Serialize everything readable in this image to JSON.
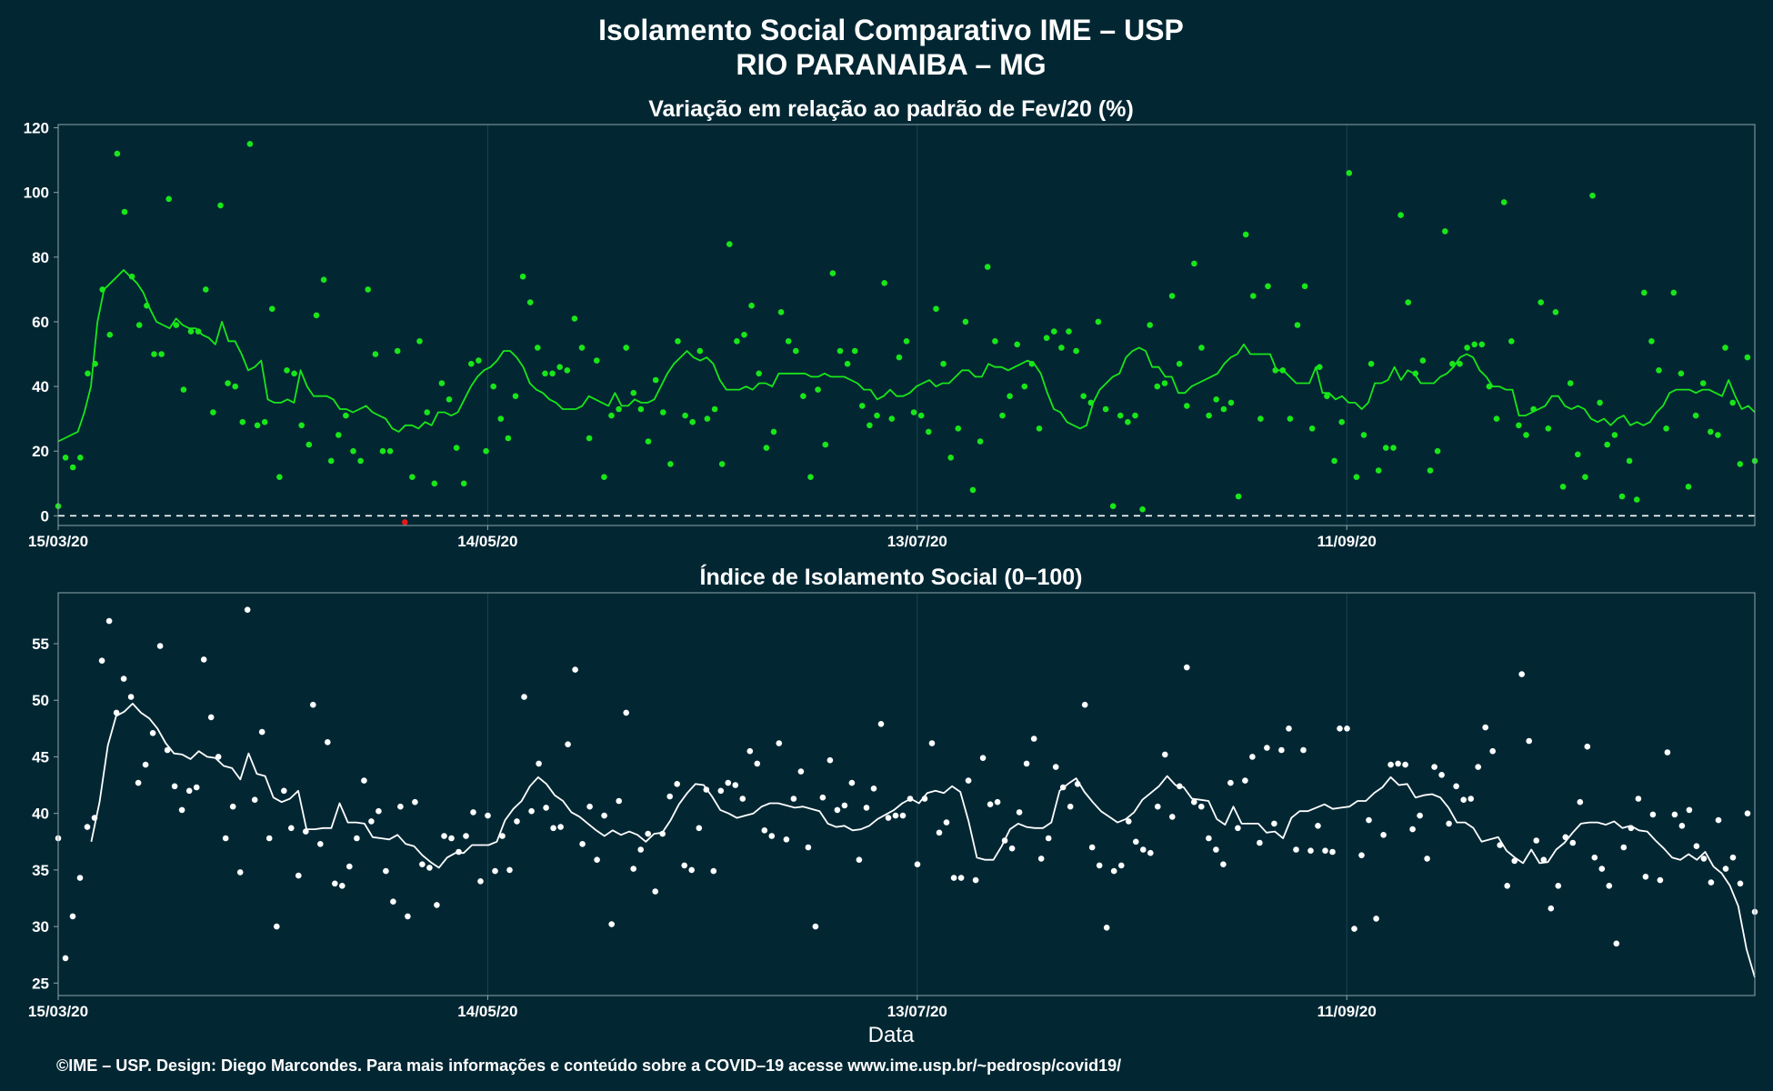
{
  "header": {
    "title": "Isolamento Social Comparativo IME – USP",
    "subtitle": "RIO PARANAIBA – MG"
  },
  "footer": {
    "credit": "©IME – USP. Design: Diego Marcondes. Para mais informações e conteúdo sobre a COVID–19 acesse www.ime.usp.br/~pedrosp/covid19/"
  },
  "colors": {
    "background": "#022733",
    "variation_points": "#19e619",
    "variation_line": "#19e619",
    "negative_point": "#e61919",
    "index_points": "#ffffff",
    "index_line": "#ffffff",
    "zero_line": "#ffffff"
  },
  "chart_data": [
    {
      "type": "scatter",
      "title": "Variação em relação ao padrão de Fev/20 (%)",
      "xlabel": "",
      "ylabel": "",
      "x_start": "2020-03-15",
      "x_end": "2020-11-07",
      "x_ticks": [
        "15/03/20",
        "14/05/20",
        "13/07/20",
        "11/09/20"
      ],
      "y_ticks": [
        0,
        20,
        40,
        60,
        80,
        100,
        120
      ],
      "ylim": [
        -3,
        121
      ],
      "reference_line": 0,
      "grid": true,
      "series": [
        {
          "kind": "points",
          "values": [
            3,
            18,
            15,
            18,
            44,
            47,
            70,
            56,
            112,
            94,
            74,
            59,
            65,
            50,
            50,
            98,
            59,
            39,
            57,
            57,
            70,
            32,
            96,
            41,
            40,
            29,
            115,
            28,
            29,
            64,
            12,
            45,
            44,
            28,
            22,
            62,
            73,
            17,
            25,
            31,
            20,
            17,
            70,
            50,
            20,
            20,
            51,
            -2,
            12,
            54,
            32,
            10,
            41,
            36,
            21,
            10,
            47,
            48,
            20,
            40,
            30,
            24,
            37,
            74,
            66,
            52,
            44,
            44,
            46,
            45,
            61,
            52,
            24,
            48,
            12,
            31,
            33,
            52,
            38,
            33,
            23,
            42,
            32,
            16,
            54,
            31,
            29,
            51,
            30,
            33,
            16,
            84,
            54,
            56,
            65,
            44,
            21,
            26,
            63,
            54,
            51,
            37,
            12,
            39,
            22,
            75,
            51,
            47,
            51,
            34,
            28,
            31,
            72,
            30,
            49,
            54,
            32,
            31,
            26,
            64,
            47,
            18,
            27,
            60,
            8,
            23,
            77,
            54,
            31,
            37,
            53,
            40,
            47,
            27,
            55,
            57,
            52,
            57,
            51,
            37,
            35,
            60,
            33,
            3,
            31,
            29,
            31,
            2,
            59,
            40,
            41,
            68,
            47,
            34,
            78,
            52,
            31,
            36,
            33,
            35,
            6,
            87,
            68,
            30,
            71,
            45,
            45,
            30,
            59,
            71,
            27,
            46,
            37,
            17,
            29,
            106,
            12,
            25,
            47,
            14,
            21,
            21,
            93,
            66,
            44,
            48,
            14,
            20,
            88,
            47,
            47,
            52,
            53,
            53,
            40,
            30,
            97,
            54,
            28,
            25,
            33,
            66,
            27,
            63,
            9,
            41,
            19,
            12,
            99,
            35,
            22,
            25,
            6,
            17,
            5,
            69,
            54,
            45,
            27,
            69,
            44,
            9,
            31,
            41,
            26,
            25,
            52,
            35,
            16,
            49,
            17
          ],
          "negative_values": [
            -2
          ]
        },
        {
          "kind": "moving_average",
          "values": [
            23,
            24,
            25,
            26,
            32,
            40,
            60,
            70,
            72,
            74,
            76,
            74,
            72,
            69,
            64,
            60,
            59,
            58,
            61,
            59,
            58,
            58,
            56,
            55,
            53,
            60,
            54,
            54,
            50,
            45,
            46,
            48,
            36,
            35,
            35,
            36,
            35,
            45,
            40,
            37,
            37,
            37,
            36,
            33,
            33,
            32,
            33,
            34,
            32,
            31,
            30,
            27,
            26,
            28,
            28,
            27,
            29,
            28,
            32,
            32,
            31,
            32,
            36,
            40,
            43,
            45,
            46,
            48,
            51,
            51,
            49,
            46,
            41,
            39,
            38,
            36,
            35,
            33,
            33,
            33,
            34,
            37,
            36,
            35,
            34,
            38,
            34,
            34,
            36,
            35,
            35,
            36,
            40,
            44,
            47,
            49,
            51,
            49,
            48,
            49,
            47,
            42,
            39,
            39,
            39,
            40,
            39,
            41,
            41,
            40,
            44,
            44,
            44,
            44,
            44,
            43,
            43,
            44,
            43,
            43,
            43,
            42,
            41,
            39,
            39,
            36,
            37,
            39,
            37,
            37,
            38,
            40,
            41,
            42,
            40,
            41,
            41,
            43,
            45,
            45,
            43,
            43,
            47,
            46,
            46,
            45,
            46,
            47,
            48,
            47,
            44,
            38,
            33,
            32,
            29,
            28,
            27,
            28,
            35,
            39,
            41,
            43,
            44,
            49,
            51,
            52,
            51,
            46,
            46,
            43,
            43,
            38,
            38,
            40,
            41,
            42,
            43,
            44,
            47,
            49,
            50,
            53,
            50,
            50,
            50,
            50,
            45,
            45,
            43,
            41,
            41,
            41,
            46,
            38,
            38,
            36,
            37,
            35,
            35,
            33,
            35,
            41,
            41,
            42,
            46,
            42,
            45,
            44,
            41,
            41,
            41,
            43,
            44,
            46,
            49,
            50,
            49,
            45,
            43,
            40,
            40,
            39,
            39,
            31,
            31,
            32,
            33,
            34,
            37,
            37,
            34,
            33,
            34,
            33,
            30,
            29,
            30,
            28,
            30,
            31,
            28,
            29,
            28,
            29,
            32,
            34,
            38,
            39,
            39,
            39,
            38,
            39,
            39,
            38,
            37,
            42,
            37,
            33,
            34,
            32
          ]
        }
      ]
    },
    {
      "type": "scatter",
      "title": "Índice de Isolamento Social (0–100)",
      "xlabel": "Data",
      "ylabel": "",
      "x_start": "2020-03-15",
      "x_end": "2020-11-07",
      "x_ticks": [
        "15/03/20",
        "14/05/20",
        "13/07/20",
        "11/09/20"
      ],
      "y_ticks": [
        25,
        30,
        35,
        40,
        45,
        50,
        55
      ],
      "ylim": [
        23.9,
        59.5
      ],
      "grid": true,
      "series": [
        {
          "kind": "points",
          "values": [
            37.8,
            27.2,
            30.9,
            34.3,
            38.8,
            39.6,
            53.5,
            57,
            48.9,
            51.9,
            50.3,
            42.7,
            44.3,
            47.1,
            54.8,
            45.6,
            42.4,
            40.3,
            42,
            42.3,
            53.6,
            48.5,
            45,
            37.8,
            40.6,
            34.8,
            58,
            41.2,
            47.2,
            37.8,
            30,
            42,
            38.7,
            34.5,
            38.4,
            49.6,
            37.3,
            46.3,
            33.8,
            33.6,
            35.3,
            37.8,
            42.9,
            39.3,
            40.2,
            34.9,
            32.2,
            40.6,
            30.9,
            41,
            35.5,
            35.2,
            31.9,
            38,
            37.8,
            36.6,
            38,
            40.1,
            34,
            39.8,
            34.9,
            38,
            35,
            39.3,
            50.3,
            40.2,
            44.4,
            40.5,
            38.7,
            38.8,
            46.1,
            52.7,
            37.3,
            40.6,
            35.9,
            39.8,
            30.2,
            41.1,
            48.9,
            35.1,
            36.8,
            38.2,
            33.1,
            38.2,
            41.5,
            42.6,
            35.4,
            35,
            38.7,
            42.1,
            34.9,
            42,
            42.7,
            42.5,
            41.3,
            45.5,
            44.4,
            38.5,
            38,
            46.2,
            37.7,
            41.3,
            43.7,
            37,
            30,
            41.4,
            44.7,
            40.3,
            40.7,
            42.7,
            35.9,
            40.5,
            42.2,
            47.9,
            39.6,
            39.8,
            39.8,
            41.3,
            35.5,
            41.3,
            46.2,
            38.3,
            39.2,
            34.3,
            34.3,
            42.9,
            34.1,
            44.9,
            40.8,
            41,
            37.6,
            36.9,
            40.1,
            44.4,
            46.6,
            36,
            37.8,
            44.1,
            42.3,
            40.6,
            42.6,
            49.6,
            37,
            35.4,
            29.9,
            34.9,
            35.4,
            39.3,
            37.5,
            36.8,
            36.5,
            40.6,
            45.2,
            39.7,
            42.4,
            52.9,
            41,
            40.6,
            37.8,
            36.8,
            35.5,
            42.7,
            38.7,
            42.9,
            45,
            37.4,
            45.8,
            39.1,
            45.6,
            47.5,
            36.8,
            45.6,
            36.7,
            38.9,
            36.7,
            36.6,
            47.5,
            47.5,
            29.8,
            36.3,
            39.4,
            30.7,
            38.1,
            44.3,
            44.4,
            44.3,
            38.6,
            39.8,
            36,
            44.1,
            43.4,
            39.1,
            42.4,
            41.2,
            41.3,
            44.1,
            47.6,
            45.5,
            37.2,
            33.6,
            35.8,
            52.3,
            46.4,
            37.6,
            35.9,
            31.6,
            33.6,
            37.9,
            37.4,
            41,
            45.9,
            36.1,
            35.1,
            33.6,
            28.5,
            37,
            38.7,
            41.3,
            34.4,
            39.9,
            34.1,
            45.4,
            39.9,
            38.9,
            40.3,
            37.1,
            36,
            33.9,
            39.4,
            35.1,
            36.1,
            33.8,
            40,
            31.3
          ]
        },
        {
          "kind": "moving_average",
          "values": [
            null,
            null,
            null,
            null,
            37.5,
            41,
            46,
            48.6,
            49,
            49.7,
            48.9,
            48.4,
            47.5,
            46.2,
            45.3,
            45.2,
            44.8,
            45.5,
            45,
            44.9,
            44.2,
            44,
            43,
            45.3,
            43.5,
            43.3,
            41.4,
            41,
            41.3,
            42,
            38.6,
            38.6,
            38.7,
            38.7,
            40.9,
            39.2,
            39.2,
            39.1,
            37.9,
            37.8,
            37.7,
            38.1,
            37.3,
            37.1,
            36.3,
            35.7,
            35.2,
            36.1,
            36.5,
            36.5,
            37.2,
            37.2,
            37.2,
            37.5,
            39.4,
            40.4,
            41.1,
            42.4,
            43.2,
            42.6,
            41.6,
            41.1,
            40.1,
            39.7,
            39.1,
            38.5,
            38,
            38.5,
            38.1,
            38.4,
            38.1,
            37.5,
            38.2,
            38.3,
            39.4,
            40.8,
            41.8,
            42.6,
            42.5,
            41.5,
            40.3,
            40,
            39.6,
            39.8,
            40,
            40.6,
            40.9,
            40.9,
            40.7,
            40.5,
            40.6,
            40.4,
            40.2,
            39.1,
            38.8,
            38.9,
            38.5,
            38.6,
            38.9,
            39.5,
            39.9,
            40.3,
            40.9,
            41.3,
            40.9,
            41.8,
            42,
            41.8,
            42.4,
            41.9,
            39.3,
            36.1,
            35.9,
            35.9,
            37.1,
            38.6,
            39.1,
            38.8,
            38.7,
            38.7,
            39.2,
            42,
            42.6,
            43.1,
            41.9,
            41,
            40.2,
            39.7,
            39.2,
            39.5,
            40.1,
            41.2,
            41.8,
            42.4,
            43.3,
            42.5,
            42.3,
            41.3,
            41.2,
            41.1,
            39.5,
            39,
            40.6,
            39.1,
            39.1,
            39.1,
            38.3,
            38.4,
            37.8,
            39.6,
            40.2,
            40.2,
            40.5,
            40.8,
            40.4,
            40.5,
            40.6,
            41.1,
            41.1,
            41.8,
            42.3,
            43.2,
            42.5,
            42.6,
            41.4,
            41.6,
            41.7,
            41.4,
            40.5,
            39.2,
            39.2,
            38.7,
            37.5,
            37.7,
            37.9,
            36.7,
            36.1,
            35.6,
            36.8,
            35.6,
            35.7,
            36.8,
            37.4,
            38.3,
            39.1,
            39.2,
            39.2,
            39,
            39.3,
            38.7,
            38.9,
            38.5,
            38.4,
            37.6,
            36.9,
            36.1,
            35.9,
            36.4,
            35.9,
            36.6,
            35.3,
            34.7,
            33.6,
            31.8,
            28,
            25.5
          ]
        }
      ]
    }
  ]
}
